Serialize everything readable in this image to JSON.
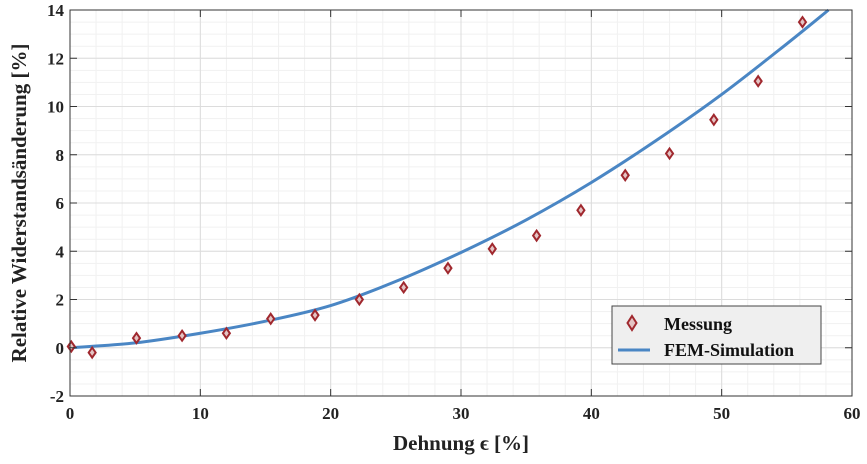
{
  "chart_data": {
    "type": "scatter",
    "xlabel": "Dehnung ϵ [%]",
    "ylabel": "Relative Widerstandsänderung [%]",
    "xlim": [
      0,
      60
    ],
    "ylim": [
      -2,
      14
    ],
    "xticks": [
      0,
      10,
      20,
      30,
      40,
      50,
      60
    ],
    "yticks": [
      -2,
      0,
      2,
      4,
      6,
      8,
      10,
      12,
      14
    ],
    "grid": true,
    "legend_position": "bottom-right",
    "series": [
      {
        "name": "Messung",
        "kind": "scatter",
        "marker": "diamond",
        "color": "#a0282e",
        "x": [
          0.1,
          1.7,
          5.1,
          8.6,
          12.0,
          15.4,
          18.8,
          22.2,
          25.6,
          29.0,
          32.4,
          35.8,
          39.2,
          42.6,
          46.0,
          49.4,
          52.8,
          56.2
        ],
        "y": [
          0.05,
          -0.2,
          0.4,
          0.5,
          0.6,
          1.2,
          1.35,
          2.0,
          2.5,
          3.3,
          4.1,
          4.65,
          5.7,
          7.15,
          8.05,
          9.45,
          11.05,
          13.5
        ]
      },
      {
        "name": "FEM-Simulation",
        "kind": "line",
        "color": "#4a86c4",
        "x": [
          0,
          5,
          10,
          15,
          20,
          25,
          30,
          35,
          40,
          45,
          50,
          55,
          58.2
        ],
        "y": [
          0,
          0.2,
          0.6,
          1.1,
          1.75,
          2.75,
          3.95,
          5.3,
          6.85,
          8.6,
          10.5,
          12.6,
          14.0
        ]
      }
    ]
  }
}
